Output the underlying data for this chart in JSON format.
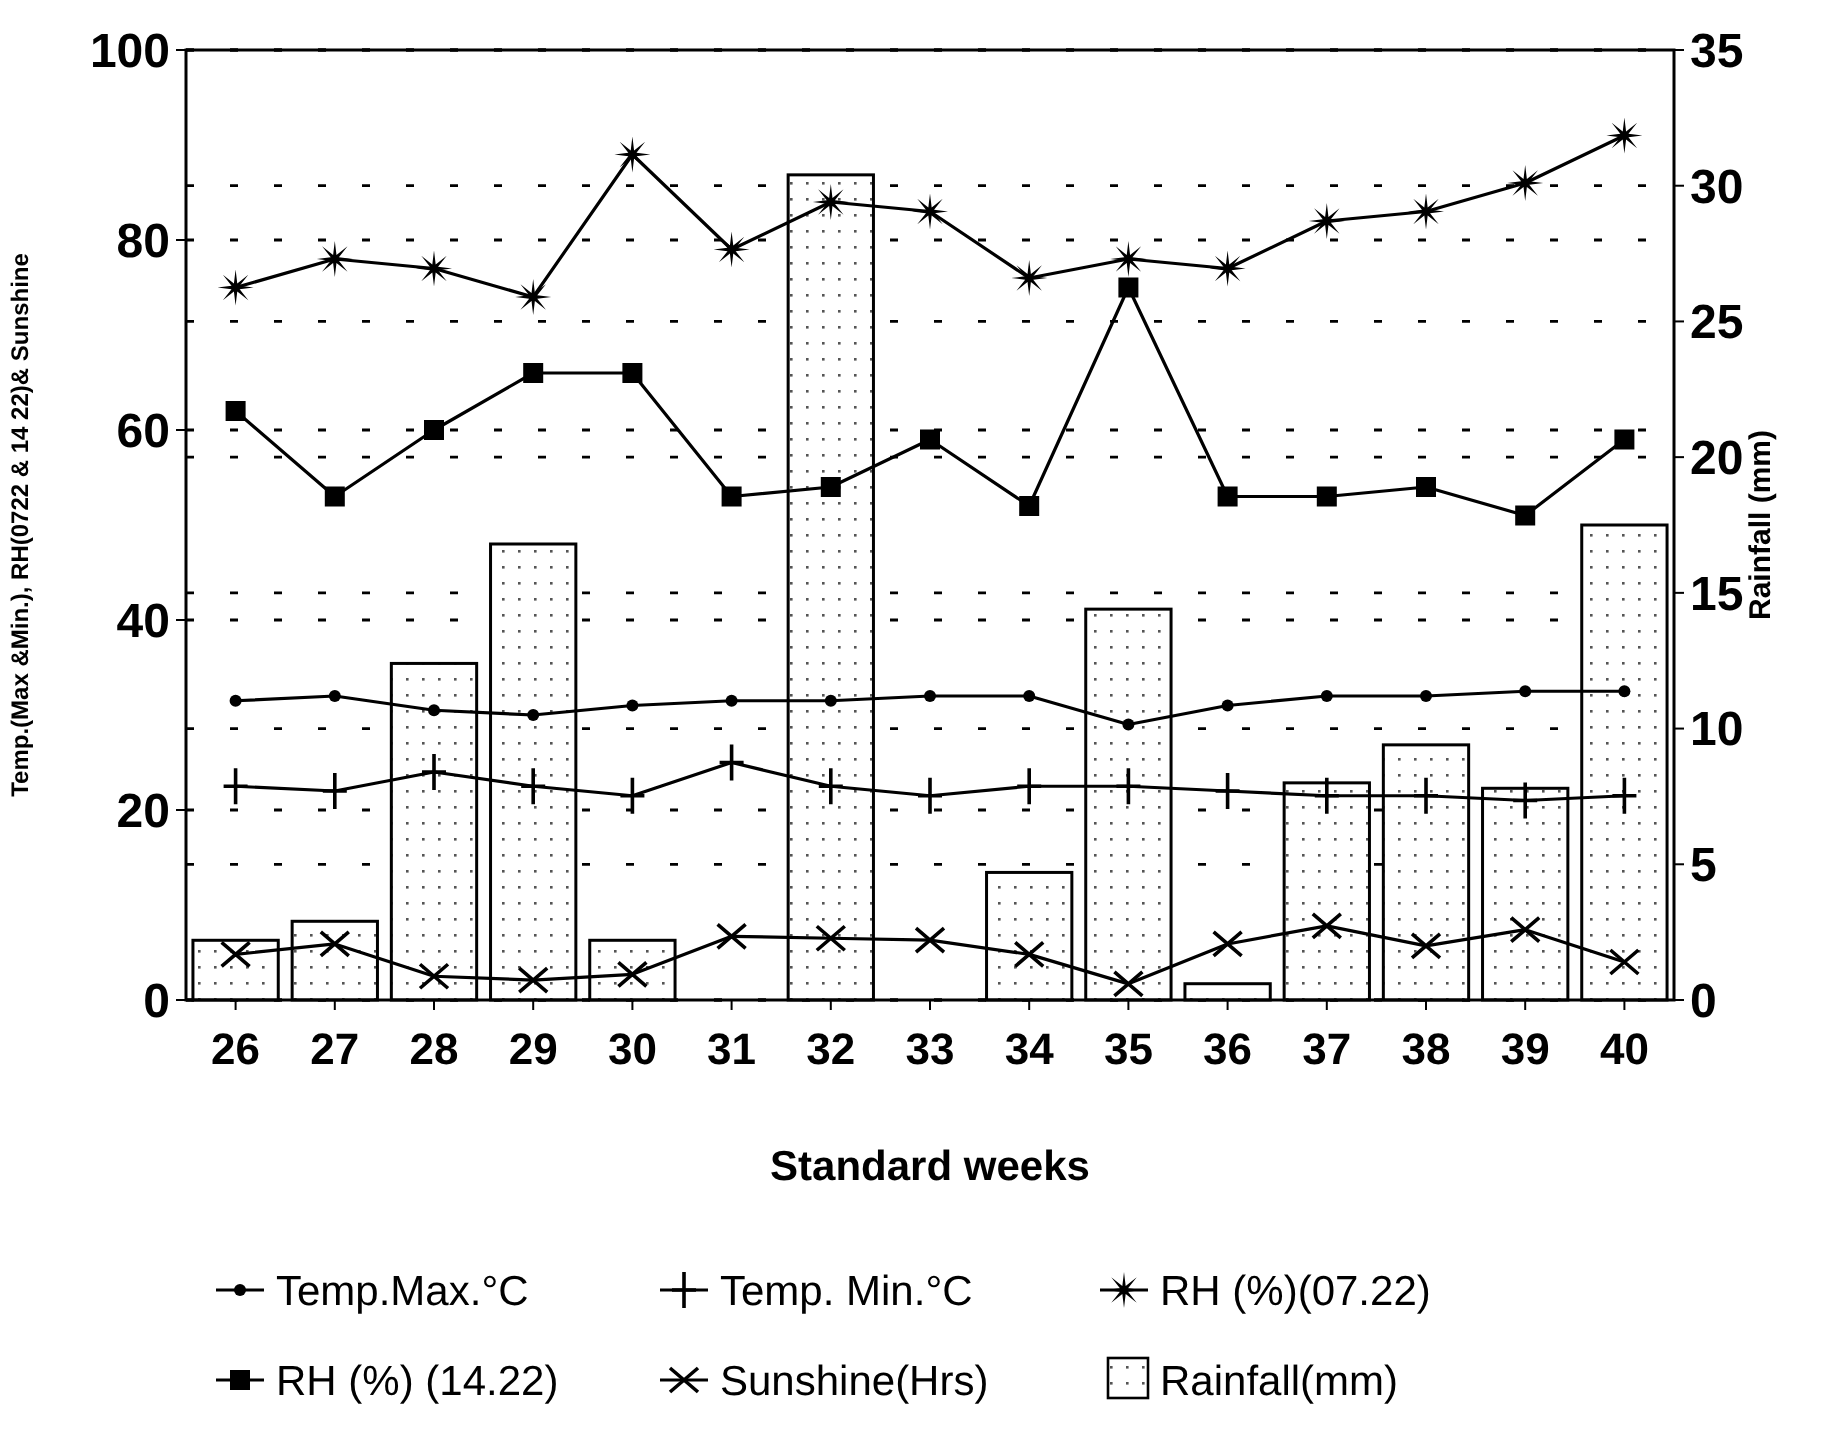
{
  "chart_data": {
    "type": "line",
    "xlabel": "Standard weeks",
    "ylabel": "Temp.(Max &Min.), RH(0722 & 14 22)& Sunshine",
    "y2label": "Rainfall (mm)",
    "categories": [
      "26",
      "27",
      "28",
      "29",
      "30",
      "31",
      "32",
      "33",
      "34",
      "35",
      "36",
      "37",
      "38",
      "39",
      "40"
    ],
    "ylim": [
      0,
      100
    ],
    "yticks": [
      0,
      20,
      40,
      60,
      80,
      100
    ],
    "y2lim": [
      0,
      35
    ],
    "y2ticks": [
      0,
      5,
      10,
      15,
      20,
      25,
      30,
      35
    ],
    "grid": true,
    "legend": "bottom",
    "line_style": "solid",
    "series": [
      {
        "name": "Temp.Max.°C",
        "marker": "circle",
        "color": "#000000",
        "values": [
          31.5,
          32,
          30.5,
          30,
          31,
          31.5,
          31.5,
          32,
          32,
          29,
          31,
          32,
          32,
          32.5,
          32.5
        ]
      },
      {
        "name": "Temp. Min.°C",
        "marker": "cross",
        "color": "#000000",
        "values": [
          22.5,
          22,
          24,
          22.5,
          21.5,
          25,
          22.5,
          21.5,
          22.5,
          22.5,
          22,
          21.5,
          21.5,
          21,
          21.5
        ]
      },
      {
        "name": "RH (%)(07.22)",
        "marker": "star",
        "color": "#000000",
        "values": [
          75,
          78,
          77,
          74,
          89,
          79,
          84,
          83,
          76,
          78,
          77,
          82,
          83,
          86,
          91
        ]
      },
      {
        "name": "RH (%) (14.22)",
        "marker": "square",
        "color": "#000000",
        "values": [
          62,
          53,
          60,
          66,
          66,
          53,
          54,
          59,
          52,
          75,
          53,
          53,
          54,
          51,
          59
        ]
      },
      {
        "name": "Sunshine(Hrs)",
        "marker": "x",
        "color": "#000000",
        "values": [
          4.8,
          5.9,
          2.5,
          2.1,
          2.7,
          6.7,
          6.5,
          6.3,
          4.8,
          1.7,
          5.9,
          7.8,
          5.7,
          7.4,
          4.0
        ]
      },
      {
        "name": "Rainfall(mm)",
        "type": "bar",
        "axis": "y2",
        "color": "#000000",
        "values": [
          2.2,
          2.9,
          12.4,
          16.8,
          2.2,
          0,
          30.4,
          0,
          4.7,
          14.4,
          0.6,
          8.0,
          9.4,
          7.8,
          17.5
        ]
      }
    ]
  }
}
